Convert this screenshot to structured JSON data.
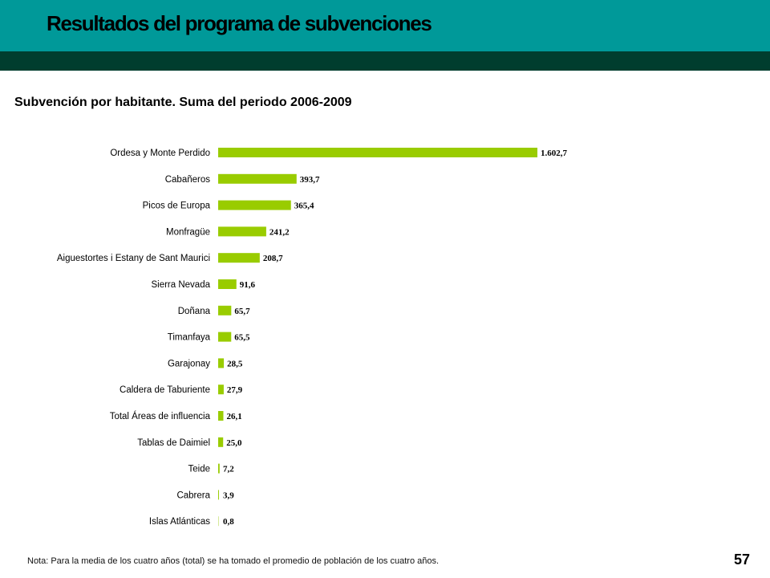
{
  "header": {
    "title": "Resultados del programa de subvenciones",
    "band_color": "#009999",
    "strip_color": "#003d2e"
  },
  "subtitle": "Subvención por habitante. Suma del periodo 2006-2009",
  "footnote": "Nota: Para la media de los cuatro años (total) se ha tomado el promedio de población de los cuatro años.",
  "page_number": "57",
  "chart_data": {
    "type": "bar",
    "orientation": "horizontal",
    "bar_color": "#99cc00",
    "categories": [
      "Ordesa y Monte Perdido",
      "Cabañeros",
      "Picos de Europa",
      "Monfragüe",
      "Aiguestortes i Estany de Sant Maurici",
      "Sierra Nevada",
      "Doñana",
      "Timanfaya",
      "Garajonay",
      "Caldera de Taburiente",
      "Total Áreas de influencia",
      "Tablas de Daimiel",
      "Teide",
      "Cabrera",
      "Islas Atlánticas"
    ],
    "values": [
      1602.7,
      393.7,
      365.4,
      241.2,
      208.7,
      91.6,
      65.7,
      65.5,
      28.5,
      27.9,
      26.1,
      25.0,
      7.2,
      3.9,
      0.8
    ],
    "data_labels": [
      "1.602,7",
      "393,7",
      "365,4",
      "241,2",
      "208,7",
      "91,6",
      "65,7",
      "65,5",
      "28,5",
      "27,9",
      "26,1",
      "25,0",
      "7,2",
      "3,9",
      "0,8"
    ],
    "xlim": [
      0,
      1602.7
    ],
    "grid": false,
    "legend": "none"
  }
}
